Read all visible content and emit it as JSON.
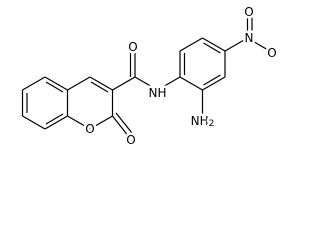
{
  "atoms": [
    {
      "label": "O"
    },
    {
      "label": "O"
    },
    {
      "label": "O"
    },
    {
      "label": "NH"
    },
    {
      "label": "NH",
      "subscript": "2"
    },
    {
      "label": "N"
    },
    {
      "label": "O"
    },
    {
      "label": "O"
    }
  ]
}
